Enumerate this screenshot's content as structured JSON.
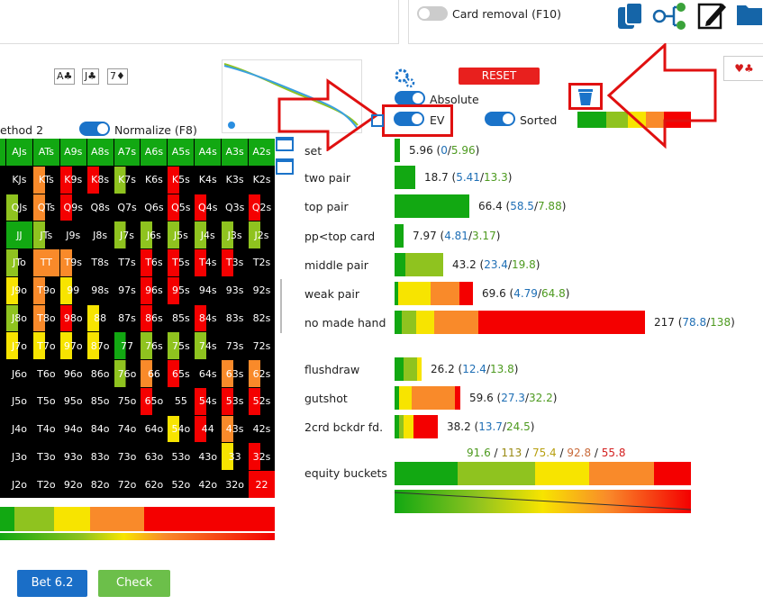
{
  "header": {
    "card_removal_label": "Card removal (F10)"
  },
  "board": {
    "cards": [
      "A♣",
      "J♣",
      "7♦"
    ]
  },
  "options": {
    "method_label": "ethod 2",
    "normalize_label": "Normalize (F8)",
    "absolute_label": "Absolute",
    "ev_label": "EV",
    "sorted_label": "Sorted",
    "reset_label": "RESET"
  },
  "suits_tab": "♥♣",
  "colors": {
    "green": "#12a812",
    "lime": "#8fc31f",
    "yellow": "#f7e400",
    "orange": "#f98a2a",
    "red": "#f40000",
    "blue": "#1a73c9"
  },
  "hand_grid": [
    [
      "AJs",
      "ATs",
      "A9s",
      "A8s",
      "A7s",
      "A6s",
      "A5s",
      "A4s",
      "A3s",
      "A2s"
    ],
    [
      "KJs",
      "KTs",
      "K9s",
      "K8s",
      "K7s",
      "K6s",
      "K5s",
      "K4s",
      "K3s",
      "K2s"
    ],
    [
      "QJs",
      "QTs",
      "Q9s",
      "Q8s",
      "Q7s",
      "Q6s",
      "Q5s",
      "Q4s",
      "Q3s",
      "Q2s"
    ],
    [
      "JJ",
      "JTs",
      "J9s",
      "J8s",
      "J7s",
      "J6s",
      "J5s",
      "J4s",
      "J3s",
      "J2s"
    ],
    [
      "JTo",
      "TT",
      "T9s",
      "T8s",
      "T7s",
      "T6s",
      "T5s",
      "T4s",
      "T3s",
      "T2s"
    ],
    [
      "J9o",
      "T9o",
      "99",
      "98s",
      "97s",
      "96s",
      "95s",
      "94s",
      "93s",
      "92s"
    ],
    [
      "J8o",
      "T8o",
      "98o",
      "88",
      "87s",
      "86s",
      "85s",
      "84s",
      "83s",
      "82s"
    ],
    [
      "J7o",
      "T7o",
      "97o",
      "87o",
      "77",
      "76s",
      "75s",
      "74s",
      "73s",
      "72s"
    ],
    [
      "J6o",
      "T6o",
      "96o",
      "86o",
      "76o",
      "66",
      "65s",
      "64s",
      "63s",
      "62s"
    ],
    [
      "J5o",
      "T5o",
      "95o",
      "85o",
      "75o",
      "65o",
      "55",
      "54s",
      "53s",
      "52s"
    ],
    [
      "J4o",
      "T4o",
      "94o",
      "84o",
      "74o",
      "64o",
      "54o",
      "44",
      "43s",
      "42s"
    ],
    [
      "J3o",
      "T3o",
      "93o",
      "83o",
      "73o",
      "63o",
      "53o",
      "43o",
      "33",
      "32s"
    ],
    [
      "J2o",
      "T2o",
      "92o",
      "82o",
      "72o",
      "62o",
      "52o",
      "42o",
      "32o",
      "22"
    ]
  ],
  "rows": [
    {
      "label": "set",
      "total": "5.96",
      "a": "0",
      "b": "5.96"
    },
    {
      "label": "two pair",
      "total": "18.7",
      "a": "5.41",
      "b": "13.3"
    },
    {
      "label": "top pair",
      "total": "66.4",
      "a": "58.5",
      "b": "7.88"
    },
    {
      "label": "pp<top card",
      "total": "7.97",
      "a": "4.81",
      "b": "3.17"
    },
    {
      "label": "middle pair",
      "total": "43.2",
      "a": "23.4",
      "b": "19.8"
    },
    {
      "label": "weak pair",
      "total": "69.6",
      "a": "4.79",
      "b": "64.8"
    },
    {
      "label": "no made hand",
      "total": "217",
      "a": "78.8",
      "b": "138"
    },
    {
      "label": "flushdraw",
      "total": "26.2",
      "a": "12.4",
      "b": "13.8"
    },
    {
      "label": "gutshot",
      "total": "59.6",
      "a": "27.3",
      "b": "32.2"
    },
    {
      "label": "2crd bckdr fd.",
      "total": "38.2",
      "a": "13.7",
      "b": "24.5"
    }
  ],
  "equity": {
    "label": "equity buckets",
    "values": [
      "91.6",
      "113",
      "75.4",
      "92.8",
      "55.8"
    ]
  },
  "actions": {
    "bet_label": "Bet 6.2",
    "check_label": "Check"
  }
}
